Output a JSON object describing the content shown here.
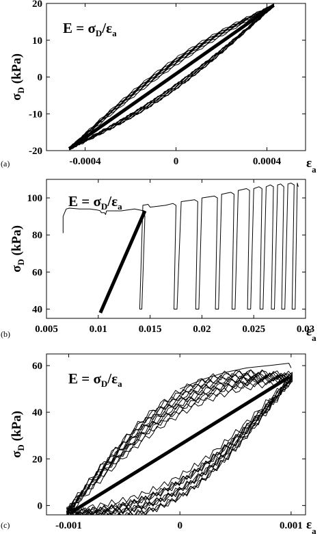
{
  "chart_data": [
    {
      "id": "a",
      "type": "line",
      "panel_tag": "(a)",
      "equation": {
        "lhs": "E",
        "eq": " = ",
        "num": "σ",
        "num_sub": "D",
        "slash": "/",
        "den": "ε",
        "den_sub": "a"
      },
      "ylabel": {
        "main": "σ",
        "sub": "D",
        "unit": " (kPa)"
      },
      "xlabel": {
        "main": "ε",
        "sub": "a"
      },
      "xlim": [
        -0.00057,
        0.00057
      ],
      "ylim": [
        -20,
        20
      ],
      "xticks": [
        -0.0004,
        0,
        0.0004
      ],
      "xtick_labels": [
        "-0.0004",
        "0",
        "0.0004"
      ],
      "yticks": [
        -20,
        -10,
        0,
        10,
        20
      ],
      "ytick_labels": [
        "-20",
        "-10",
        "0",
        "10",
        "20"
      ],
      "fit_line": {
        "x": [
          -0.00047,
          0.00043
        ],
        "y": [
          -19.5,
          19.5
        ]
      },
      "loop": {
        "cycles": 10,
        "x_range": [
          -0.00047,
          0.00043
        ],
        "y_range": [
          -19.5,
          19.5
        ],
        "width": 3.5,
        "offset": 0.5
      }
    },
    {
      "id": "b",
      "type": "line",
      "panel_tag": "(b)",
      "equation": {
        "lhs": "E",
        "eq": " = ",
        "num": "σ",
        "num_sub": "D",
        "slash": "/",
        "den": "ε",
        "den_sub": "a"
      },
      "ylabel": {
        "main": "σ",
        "sub": "D",
        "unit": " (kPa)"
      },
      "xlabel": {
        "main": "ε",
        "sub": "a"
      },
      "xlim": [
        0.005,
        0.03
      ],
      "ylim": [
        35,
        110
      ],
      "xticks": [
        0.005,
        0.01,
        0.015,
        0.02,
        0.025,
        0.03
      ],
      "xtick_labels": [
        "0.005",
        "0.01",
        "0.015",
        "0.02",
        "0.025",
        "0.03"
      ],
      "yticks": [
        40,
        60,
        80,
        100
      ],
      "ytick_labels": [
        "40",
        "60",
        "80",
        "100"
      ],
      "fit_line": {
        "x": [
          0.0102,
          0.0145
        ],
        "y": [
          38,
          93
        ]
      },
      "path": {
        "x": [
          0.0066,
          0.0066,
          0.0069,
          0.0072,
          0.0082,
          0.0092,
          0.0099,
          0.0102,
          0.0103,
          0.0106,
          0.0107,
          0.0108,
          0.0122,
          0.0135,
          0.0144,
          0.0145,
          0.0142,
          0.014,
          0.0143,
          0.0148,
          0.015,
          0.0165,
          0.0172,
          0.0175,
          0.0173,
          0.0176,
          0.018,
          0.0193,
          0.0196,
          0.0194,
          0.0197,
          0.02,
          0.0212,
          0.0215,
          0.0213,
          0.0216,
          0.0219,
          0.0228,
          0.0231,
          0.0229,
          0.0232,
          0.0235,
          0.0243,
          0.0246,
          0.0244,
          0.0247,
          0.025,
          0.0255,
          0.0258,
          0.0256,
          0.0259,
          0.0262,
          0.0266,
          0.0269,
          0.0267,
          0.027,
          0.0273,
          0.0276,
          0.0279,
          0.0277,
          0.028,
          0.0283,
          0.0286,
          0.0289,
          0.0287,
          0.029,
          0.0292,
          0.0293
        ],
        "y": [
          81,
          90,
          94,
          94.5,
          94,
          94,
          93.5,
          93,
          92,
          92,
          91,
          93,
          93,
          94,
          93,
          90,
          40,
          40,
          96,
          96.5,
          95,
          96,
          97,
          96,
          40,
          40,
          98,
          99,
          98,
          40,
          40,
          100,
          101,
          100,
          40,
          40,
          102,
          103,
          102,
          40,
          40,
          104,
          105,
          104,
          40,
          40,
          105,
          106,
          105,
          40,
          40,
          106,
          107,
          106,
          40,
          40,
          107,
          107.5,
          106,
          40,
          40,
          107.5,
          108,
          107,
          40,
          40,
          108,
          106
        ]
      }
    },
    {
      "id": "c",
      "type": "line",
      "panel_tag": "(c)",
      "equation": {
        "lhs": "E",
        "eq": " = ",
        "num": "σ",
        "num_sub": "D",
        "slash": "/",
        "den": "ε",
        "den_sub": "a"
      },
      "ylabel": {
        "main": "σ",
        "sub": "D",
        "unit": " (kPa)"
      },
      "xlabel": {
        "main": "ε",
        "sub": "a"
      },
      "xlim": [
        -0.0012,
        0.00113
      ],
      "ylim": [
        -4,
        65
      ],
      "xticks": [
        -0.001,
        0,
        0.001
      ],
      "xtick_labels": [
        "-0.001",
        "0",
        "0.001"
      ],
      "yticks": [
        0,
        20,
        40,
        60
      ],
      "ytick_labels": [
        "0",
        "20",
        "40",
        "60"
      ],
      "fit_line": {
        "x": [
          -0.00098,
          0.00098
        ],
        "y": [
          -3,
          55
        ]
      },
      "loop": {
        "cycles": 12,
        "x_range": [
          -0.00102,
          0.00101
        ],
        "y_range": [
          -3,
          55
        ],
        "width": 19,
        "offset": 2.5
      },
      "virgin_path": {
        "x": [
          0.0,
          0.0002,
          0.0004,
          0.0006,
          0.0008,
          0.00098,
          0.001
        ],
        "y": [
          50,
          54,
          57,
          59,
          60,
          61,
          59
        ]
      }
    }
  ]
}
